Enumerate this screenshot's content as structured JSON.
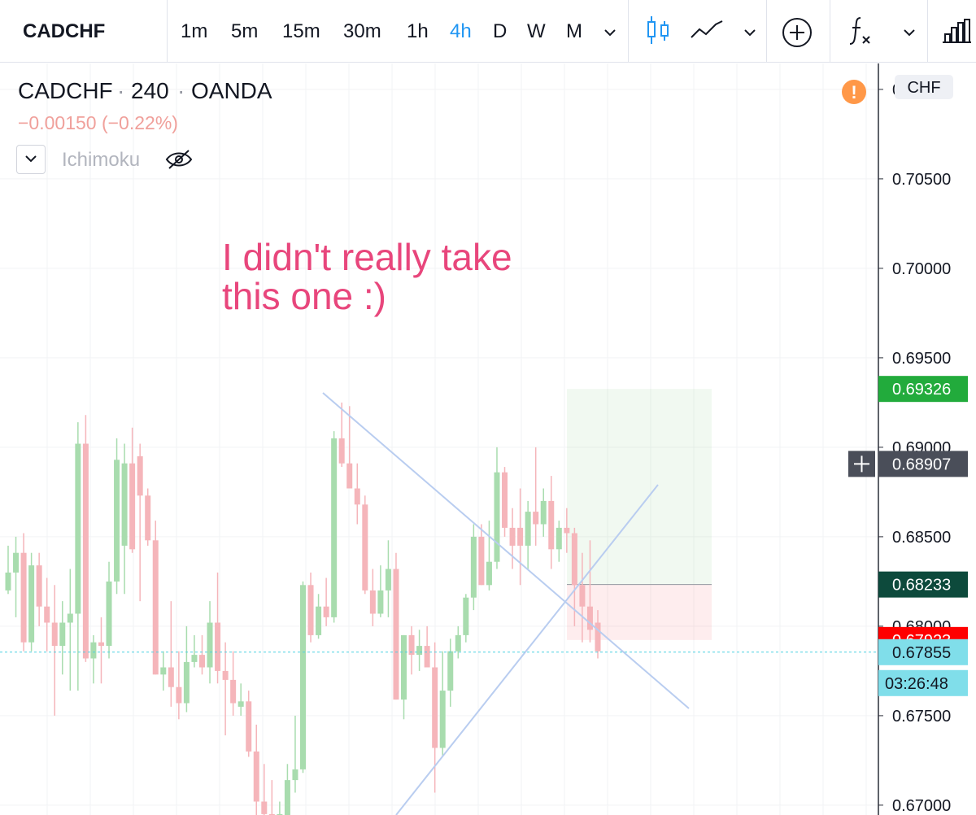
{
  "toolbar": {
    "symbol": "CADCHF",
    "intervals": [
      "1m",
      "5m",
      "15m",
      "30m",
      "1h",
      "4h",
      "D",
      "W",
      "M"
    ],
    "active": 5
  },
  "legend": {
    "symbol": "CADCHF",
    "interval": "240",
    "exchange": "OANDA",
    "change": "−0.00150 (−0.22%)",
    "indicator": "Ichimoku"
  },
  "chart_data": {
    "type": "candlestick",
    "annotation": [
      "I didn't really take",
      "this one :)"
    ],
    "currency": "CHF",
    "up_color": "#a8dcae",
    "down_color": "#f5b5ba",
    "ylim": [
      0.66945,
      0.71145
    ],
    "yticks": [
      {
        "value": 0.71,
        "label": "0.71000"
      },
      {
        "value": 0.705,
        "label": "0.70500"
      },
      {
        "value": 0.7,
        "label": "0.70000"
      },
      {
        "value": 0.695,
        "label": "0.69500"
      },
      {
        "value": 0.69,
        "label": "0.69000"
      },
      {
        "value": 0.685,
        "label": "0.68500"
      },
      {
        "value": 0.68,
        "label": "0.68000"
      },
      {
        "value": 0.675,
        "label": "0.67500"
      },
      {
        "value": 0.67,
        "label": "0.67000"
      }
    ],
    "position": {
      "target": 0.69326,
      "entry": 0.68233,
      "stop": 0.67923
    },
    "crosshair": 0.68907,
    "current_price": 0.67855,
    "countdown": "03:26:48",
    "ohlc": [
      [
        0.682,
        0.6845,
        0.6818,
        0.683
      ],
      [
        0.683,
        0.685,
        0.6805,
        0.6841
      ],
      [
        0.6841,
        0.6852,
        0.6786,
        0.6791
      ],
      [
        0.6791,
        0.6841,
        0.6786,
        0.6834
      ],
      [
        0.6834,
        0.6841,
        0.68,
        0.6811
      ],
      [
        0.6811,
        0.6827,
        0.6786,
        0.6802
      ],
      [
        0.6802,
        0.6823,
        0.675,
        0.6789
      ],
      [
        0.6789,
        0.6814,
        0.6773,
        0.6802
      ],
      [
        0.6802,
        0.6832,
        0.6764,
        0.6807
      ],
      [
        0.6807,
        0.6914,
        0.6764,
        0.6902
      ],
      [
        0.6902,
        0.6918,
        0.678,
        0.6782
      ],
      [
        0.6782,
        0.6795,
        0.6768,
        0.6791
      ],
      [
        0.6791,
        0.6805,
        0.6768,
        0.6789
      ],
      [
        0.6789,
        0.6836,
        0.6782,
        0.6825
      ],
      [
        0.6825,
        0.6905,
        0.6818,
        0.6893
      ],
      [
        0.6845,
        0.6902,
        0.6818,
        0.6891
      ],
      [
        0.6891,
        0.6911,
        0.6841,
        0.6843
      ],
      [
        0.6895,
        0.6902,
        0.6814,
        0.6873
      ],
      [
        0.6873,
        0.6877,
        0.6845,
        0.6848
      ],
      [
        0.6848,
        0.6859,
        0.6773,
        0.6773
      ],
      [
        0.6773,
        0.6786,
        0.6764,
        0.6777
      ],
      [
        0.6777,
        0.6814,
        0.6755,
        0.6766
      ],
      [
        0.6766,
        0.6786,
        0.6748,
        0.6757
      ],
      [
        0.6757,
        0.68,
        0.6752,
        0.678
      ],
      [
        0.678,
        0.6795,
        0.6777,
        0.6784
      ],
      [
        0.6784,
        0.6795,
        0.6773,
        0.6777
      ],
      [
        0.6777,
        0.6814,
        0.6768,
        0.6802
      ],
      [
        0.6802,
        0.683,
        0.6768,
        0.6775
      ],
      [
        0.6775,
        0.6791,
        0.6739,
        0.677
      ],
      [
        0.677,
        0.6786,
        0.675,
        0.6757
      ],
      [
        0.6755,
        0.6768,
        0.675,
        0.6758
      ],
      [
        0.6758,
        0.6764,
        0.6727,
        0.673
      ],
      [
        0.673,
        0.6745,
        0.669,
        0.6702
      ],
      [
        0.6702,
        0.6723,
        0.6685,
        0.6695
      ],
      [
        0.6695,
        0.6714,
        0.668,
        0.6688
      ],
      [
        0.6688,
        0.6702,
        0.6675,
        0.6695
      ],
      [
        0.669,
        0.6723,
        0.668,
        0.6714
      ],
      [
        0.6714,
        0.675,
        0.6707,
        0.672
      ],
      [
        0.672,
        0.6825,
        0.6718,
        0.6823
      ],
      [
        0.6823,
        0.683,
        0.6791,
        0.6795
      ],
      [
        0.6795,
        0.6818,
        0.6793,
        0.6811
      ],
      [
        0.6811,
        0.6827,
        0.68,
        0.6805
      ],
      [
        0.6805,
        0.6909,
        0.6802,
        0.6905
      ],
      [
        0.6905,
        0.6925,
        0.6889,
        0.6891
      ],
      [
        0.6891,
        0.6923,
        0.6877,
        0.6877
      ],
      [
        0.6877,
        0.6891,
        0.6857,
        0.6868
      ],
      [
        0.6868,
        0.6873,
        0.6818,
        0.682
      ],
      [
        0.682,
        0.6832,
        0.68,
        0.6807
      ],
      [
        0.6807,
        0.6834,
        0.6805,
        0.682
      ],
      [
        0.682,
        0.6848,
        0.6805,
        0.6832
      ],
      [
        0.6832,
        0.6841,
        0.6759,
        0.6759
      ],
      [
        0.6759,
        0.6795,
        0.6748,
        0.6795
      ],
      [
        0.6795,
        0.68,
        0.6773,
        0.6784
      ],
      [
        0.6784,
        0.6798,
        0.6775,
        0.6789
      ],
      [
        0.6789,
        0.68,
        0.6777,
        0.6777
      ],
      [
        0.6777,
        0.6791,
        0.6707,
        0.6732
      ],
      [
        0.6732,
        0.6786,
        0.6727,
        0.6764
      ],
      [
        0.6764,
        0.6793,
        0.6755,
        0.6786
      ],
      [
        0.6786,
        0.68,
        0.6782,
        0.6795
      ],
      [
        0.6795,
        0.6818,
        0.6791,
        0.6816
      ],
      [
        0.6816,
        0.6857,
        0.6809,
        0.685
      ],
      [
        0.685,
        0.6857,
        0.6823,
        0.6823
      ],
      [
        0.6823,
        0.6859,
        0.682,
        0.6836
      ],
      [
        0.6836,
        0.69,
        0.6832,
        0.6886
      ],
      [
        0.6886,
        0.6889,
        0.685,
        0.6855
      ],
      [
        0.6855,
        0.6866,
        0.6832,
        0.6845
      ],
      [
        0.6855,
        0.6877,
        0.6823,
        0.6845
      ],
      [
        0.6845,
        0.687,
        0.6832,
        0.6864
      ],
      [
        0.6864,
        0.69,
        0.6845,
        0.6857
      ],
      [
        0.6857,
        0.6877,
        0.685,
        0.687
      ],
      [
        0.687,
        0.6884,
        0.6832,
        0.6843
      ],
      [
        0.6843,
        0.6859,
        0.6836,
        0.6855
      ],
      [
        0.6855,
        0.6866,
        0.6841,
        0.6852
      ],
      [
        0.6852,
        0.6855,
        0.68,
        0.6823
      ],
      [
        0.6823,
        0.6841,
        0.6791,
        0.6811
      ],
      [
        0.6811,
        0.6848,
        0.6791,
        0.6798
      ],
      [
        0.6802,
        0.6809,
        0.6782,
        0.6786
      ]
    ]
  }
}
